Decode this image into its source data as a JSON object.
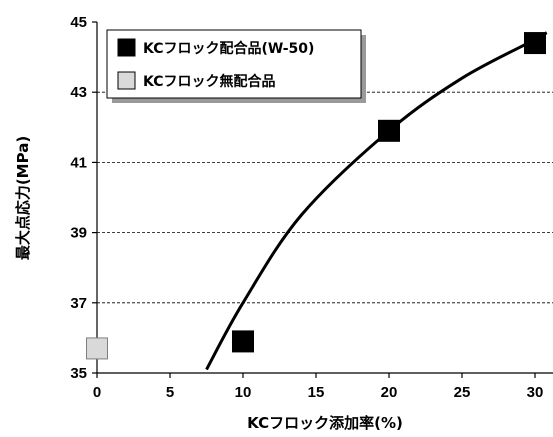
{
  "chart_data": {
    "type": "scatter",
    "xlabel": "KCフロック添加率(%)",
    "ylabel": "最大点応力(MPa)",
    "xlim": [
      0,
      30
    ],
    "ylim": [
      35,
      45
    ],
    "x_ticks": [
      0,
      5,
      10,
      15,
      20,
      25,
      30
    ],
    "y_ticks": [
      35,
      37,
      39,
      41,
      43,
      45
    ],
    "grid": "horizontal dashed at 37, 39, 41, 43",
    "legend_position": "top-left",
    "colors": {
      "with_kc": "#000000",
      "without_kc": "#d9d9d9"
    },
    "series": [
      {
        "name": "KCフロック配合品(W-50)",
        "marker": "square",
        "color": "#000000",
        "points": [
          {
            "x": 10,
            "y": 35.9
          },
          {
            "x": 20,
            "y": 41.9
          },
          {
            "x": 30,
            "y": 44.4
          }
        ]
      },
      {
        "name": "KCフロック無配合品",
        "marker": "square",
        "color": "#d9d9d9",
        "points": [
          {
            "x": 0,
            "y": 35.7
          }
        ]
      }
    ],
    "trendline": {
      "style": "solid black smooth curve",
      "points": [
        {
          "x": 7.5,
          "y": 35.1
        },
        {
          "x": 10,
          "y": 37.0
        },
        {
          "x": 14,
          "y": 39.5
        },
        {
          "x": 20,
          "y": 41.9
        },
        {
          "x": 25,
          "y": 43.4
        },
        {
          "x": 30,
          "y": 44.5
        },
        {
          "x": 30.8,
          "y": 44.7
        }
      ]
    }
  }
}
